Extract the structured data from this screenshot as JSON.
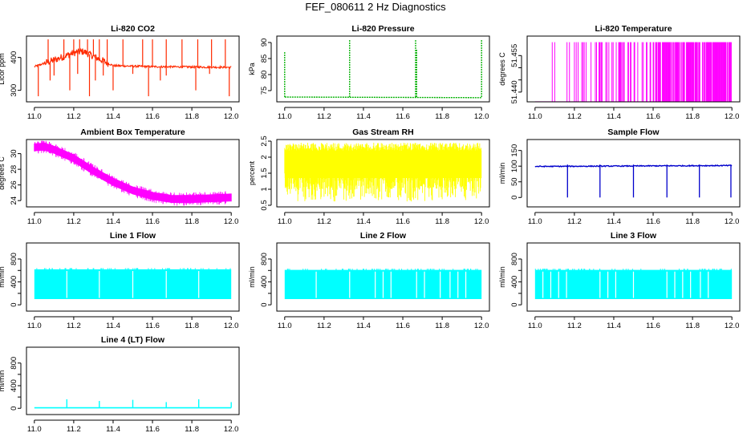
{
  "page": {
    "title": "FEF_080611  2 Hz Diagnostics"
  },
  "chart_data": [
    {
      "id": "co2",
      "type": "line",
      "title": "Li-820 CO2",
      "xlabel": "",
      "ylabel": "Licor ppm",
      "xlim": [
        10.96,
        12.04
      ],
      "ylim": [
        265,
        465
      ],
      "xticks": [
        11.0,
        11.2,
        11.4,
        11.6,
        11.8,
        12.0
      ],
      "xtick_labels": [
        "11.0",
        "11.2",
        "11.4",
        "11.6",
        "11.8",
        "12.0"
      ],
      "yticks": [
        300,
        400
      ],
      "ytick_labels": [
        "300",
        "400"
      ],
      "color": "#ff2a00",
      "pattern": "co2",
      "baseline": [
        [
          11.0,
          372
        ],
        [
          11.1,
          392
        ],
        [
          11.2,
          414
        ],
        [
          11.25,
          418
        ],
        [
          11.32,
          398
        ],
        [
          11.4,
          375
        ],
        [
          11.6,
          372
        ],
        [
          12.0,
          370
        ]
      ],
      "spikes_up": [
        11.07,
        11.15,
        11.2,
        11.23,
        11.27,
        11.3,
        11.33,
        11.37,
        11.45,
        11.55,
        11.6,
        11.67,
        11.75,
        11.83,
        11.9,
        11.97
      ],
      "spikes_down": [
        11.02,
        11.08,
        11.1,
        11.18,
        11.22,
        11.28,
        11.31,
        11.35,
        11.4,
        11.5,
        11.58,
        11.64,
        11.67,
        11.82,
        11.89,
        11.99
      ]
    },
    {
      "id": "pressure",
      "type": "line",
      "title": "Li-820 Pressure",
      "xlabel": "",
      "ylabel": "kPa",
      "xlim": [
        10.96,
        12.04
      ],
      "ylim": [
        71.5,
        92
      ],
      "xticks": [
        11.0,
        11.2,
        11.4,
        11.6,
        11.8,
        12.0
      ],
      "xtick_labels": [
        "11.0",
        "11.2",
        "11.4",
        "11.6",
        "11.8",
        "12.0"
      ],
      "yticks": [
        75,
        80,
        85,
        90
      ],
      "ytick_labels": [
        "75",
        "80",
        "85",
        "90"
      ],
      "color": "#00b000",
      "pattern": "pressure",
      "base": 73,
      "spikes": [
        [
          11.0,
          87
        ],
        [
          11.33,
          91
        ],
        [
          11.665,
          91
        ],
        [
          11.67,
          88
        ],
        [
          12.0,
          91
        ]
      ]
    },
    {
      "id": "licor-temp",
      "type": "bar",
      "title": "Li-820 Temperature",
      "xlabel": "",
      "ylabel": "degrees C",
      "xlim": [
        10.96,
        12.04
      ],
      "ylim": [
        51.436,
        51.463
      ],
      "xticks": [
        11.0,
        11.2,
        11.4,
        11.6,
        11.8,
        12.0
      ],
      "xtick_labels": [
        "11.0",
        "11.2",
        "11.4",
        "11.6",
        "11.8",
        "12.0"
      ],
      "yticks": [
        51.44,
        51.445,
        51.45,
        51.455
      ],
      "ytick_labels": [
        "51.440",
        "",
        "",
        "51.455"
      ],
      "color": "#ff00ff",
      "pattern": "temp-lines",
      "low": 51.436,
      "high": 51.4605
    },
    {
      "id": "box-temp",
      "type": "line",
      "title": "Ambient Box Temperature",
      "xlabel": "",
      "ylabel": "degrees C",
      "xlim": [
        10.96,
        12.04
      ],
      "ylim": [
        23.2,
        31.8
      ],
      "xticks": [
        11.0,
        11.2,
        11.4,
        11.6,
        11.8,
        12.0
      ],
      "xtick_labels": [
        "11.0",
        "11.2",
        "11.4",
        "11.6",
        "11.8",
        "12.0"
      ],
      "yticks": [
        24,
        26,
        28,
        30
      ],
      "ytick_labels": [
        "24",
        "26",
        "28",
        "30"
      ],
      "color": "#ff00ff",
      "pattern": "band",
      "band": 0.45,
      "curve": [
        [
          11.0,
          30.8
        ],
        [
          11.05,
          30.9
        ],
        [
          11.1,
          30.5
        ],
        [
          11.2,
          29.4
        ],
        [
          11.3,
          27.8
        ],
        [
          11.4,
          26.4
        ],
        [
          11.5,
          25.3
        ],
        [
          11.6,
          24.6
        ],
        [
          11.7,
          24.2
        ],
        [
          11.8,
          24.2
        ],
        [
          11.9,
          24.3
        ],
        [
          12.0,
          24.4
        ]
      ]
    },
    {
      "id": "rh",
      "type": "area",
      "title": "Gas Stream RH",
      "xlabel": "",
      "ylabel": "percent",
      "xlim": [
        10.96,
        12.04
      ],
      "ylim": [
        0.45,
        2.55
      ],
      "xticks": [
        11.0,
        11.2,
        11.4,
        11.6,
        11.8,
        12.0
      ],
      "xtick_labels": [
        "11.0",
        "11.2",
        "11.4",
        "11.6",
        "11.8",
        "12.0"
      ],
      "yticks": [
        0.5,
        1.0,
        1.5,
        2.0,
        2.5
      ],
      "ytick_labels": [
        "0.5",
        "1",
        "1.5",
        "2",
        "2.5"
      ],
      "color": "#ffff00",
      "pattern": "rh",
      "top": 2.2,
      "low": 0.62
    },
    {
      "id": "sample-flow",
      "type": "line",
      "title": "Sample Flow",
      "xlabel": "",
      "ylabel": "ml/min",
      "xlim": [
        10.96,
        12.04
      ],
      "ylim": [
        -30,
        185
      ],
      "xticks": [
        11.0,
        11.2,
        11.4,
        11.6,
        11.8,
        12.0
      ],
      "xtick_labels": [
        "11.0",
        "11.2",
        "11.4",
        "11.6",
        "11.8",
        "12.0"
      ],
      "yticks": [
        0,
        50,
        100,
        150
      ],
      "ytick_labels": [
        "0",
        "50",
        "100",
        "150"
      ],
      "color": "#0000cc",
      "pattern": "sample",
      "base": 102,
      "drops": [
        11.165,
        11.33,
        11.5,
        11.67,
        11.835,
        11.995
      ]
    },
    {
      "id": "line1",
      "type": "area",
      "title": "Line 1 Flow",
      "xlabel": "",
      "ylabel": "ml/min",
      "xlim": [
        10.96,
        12.04
      ],
      "ylim": [
        -110,
        1080
      ],
      "xticks": [
        11.0,
        11.2,
        11.4,
        11.6,
        11.8,
        12.0
      ],
      "xtick_labels": [
        "11.0",
        "11.2",
        "11.4",
        "11.6",
        "11.8",
        "12.0"
      ],
      "yticks": [
        0,
        200,
        400,
        600,
        800
      ],
      "ytick_labels": [
        "0",
        "",
        "400",
        "",
        "800"
      ],
      "color": "#00ffff",
      "pattern": "flow",
      "top": 620,
      "low": 100,
      "gaps": [
        11.165,
        11.33,
        11.5,
        11.67,
        11.835
      ]
    },
    {
      "id": "line2",
      "type": "area",
      "title": "Line 2 Flow",
      "xlabel": "",
      "ylabel": "ml/min",
      "xlim": [
        10.96,
        12.04
      ],
      "ylim": [
        -110,
        1080
      ],
      "xticks": [
        11.0,
        11.2,
        11.4,
        11.6,
        11.8,
        12.0
      ],
      "xtick_labels": [
        "11.0",
        "11.2",
        "11.4",
        "11.6",
        "11.8",
        "12.0"
      ],
      "yticks": [
        0,
        200,
        400,
        600,
        800
      ],
      "ytick_labels": [
        "0",
        "",
        "400",
        "",
        "800"
      ],
      "color": "#00ffff",
      "pattern": "flow",
      "top": 610,
      "low": 100,
      "gaps": [
        11.16,
        11.33,
        11.46,
        11.5,
        11.54,
        11.67,
        11.71,
        11.79,
        11.84,
        11.88,
        11.92
      ]
    },
    {
      "id": "line3",
      "type": "area",
      "title": "Line 3 Flow",
      "xlabel": "",
      "ylabel": "ml/min",
      "xlim": [
        10.96,
        12.04
      ],
      "ylim": [
        -110,
        1080
      ],
      "xticks": [
        11.0,
        11.2,
        11.4,
        11.6,
        11.8,
        12.0
      ],
      "xtick_labels": [
        "11.0",
        "11.2",
        "11.4",
        "11.6",
        "11.8",
        "12.0"
      ],
      "yticks": [
        0,
        200,
        400,
        600,
        800
      ],
      "ytick_labels": [
        "0",
        "",
        "400",
        "",
        "800"
      ],
      "color": "#00ffff",
      "pattern": "flow",
      "top": 610,
      "low": 100,
      "gaps": [
        11.04,
        11.08,
        11.12,
        11.16,
        11.33,
        11.37,
        11.41,
        11.5,
        11.67,
        11.71,
        11.75,
        11.79,
        11.84,
        11.88
      ]
    },
    {
      "id": "line4",
      "type": "line",
      "title": "Line 4 (LT) Flow",
      "xlabel": "",
      "ylabel": "ml/min",
      "xlim": [
        10.96,
        12.04
      ],
      "ylim": [
        -110,
        1080
      ],
      "xticks": [
        11.0,
        11.2,
        11.4,
        11.6,
        11.8,
        12.0
      ],
      "xtick_labels": [
        "11.0",
        "11.2",
        "11.4",
        "11.6",
        "11.8",
        "12.0"
      ],
      "yticks": [
        0,
        200,
        400,
        600,
        800
      ],
      "ytick_labels": [
        "0",
        "",
        "400",
        "",
        "800"
      ],
      "color": "#00ffff",
      "pattern": "sparse",
      "base": 10,
      "spikes": [
        [
          11.165,
          160
        ],
        [
          11.33,
          130
        ],
        [
          11.5,
          150
        ],
        [
          11.67,
          110
        ],
        [
          11.835,
          160
        ],
        [
          12.0,
          110
        ]
      ]
    }
  ]
}
